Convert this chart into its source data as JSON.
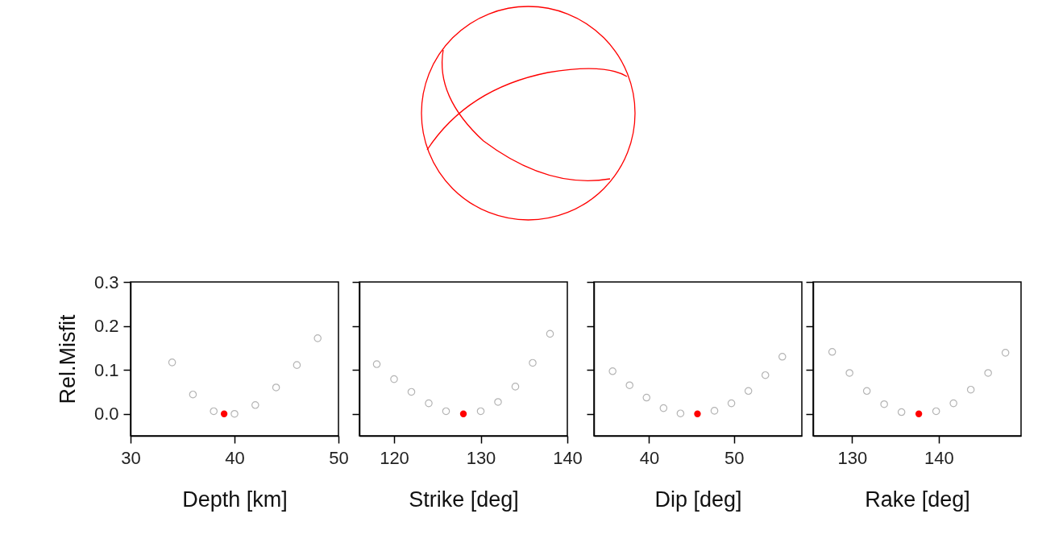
{
  "chart_data": [
    {
      "type": "scatter",
      "xlabel": "Depth [km]",
      "ylabel": "Rel.Misfit",
      "xlim": [
        30,
        50
      ],
      "xticks": [
        30,
        40,
        50
      ],
      "ylim": [
        -0.05,
        0.3
      ],
      "yticks": [
        {
          "value": 0,
          "label": "0.0"
        },
        {
          "value": 0.1,
          "label": "0.1"
        },
        {
          "value": 0.2,
          "label": "0.2"
        },
        {
          "value": 0.3,
          "label": "0.3"
        }
      ],
      "marker": "circle",
      "series": [
        {
          "color": "#b4b4b4",
          "x": [
            34,
            36,
            38,
            40,
            42,
            44,
            46,
            48
          ],
          "values": [
            0.117,
            0.044,
            0.006,
            0,
            0.02,
            0.06,
            0.111,
            0.172
          ]
        },
        {
          "color": "#ff0000",
          "x": [
            39
          ],
          "values": [
            0
          ]
        }
      ]
    },
    {
      "type": "scatter",
      "xlabel": "Strike [deg]",
      "xlim": [
        116,
        140
      ],
      "xticks": [
        120,
        130,
        140
      ],
      "ylim": [
        -0.05,
        0.3
      ],
      "yticks": [
        0,
        0.1,
        0.2,
        0.3
      ],
      "tick_labels": "x",
      "marker": "circle",
      "series": [
        {
          "color": "#b4b4b4",
          "x": [
            118,
            120,
            122,
            124,
            126,
            130,
            132,
            134,
            136,
            138
          ],
          "values": [
            0.113,
            0.079,
            0.05,
            0.024,
            0.006,
            0.006,
            0.027,
            0.062,
            0.116,
            0.182
          ]
        },
        {
          "color": "#ff0000",
          "x": [
            128
          ],
          "values": [
            0
          ]
        }
      ]
    },
    {
      "type": "scatter",
      "xlabel": "Dip [deg]",
      "xlim": [
        33.5,
        58
      ],
      "xticks": [
        40,
        50
      ],
      "ylim": [
        -0.05,
        0.3
      ],
      "yticks": [
        0,
        0.1,
        0.2,
        0.3
      ],
      "tick_labels": "x",
      "marker": "circle",
      "series": [
        {
          "color": "#b4b4b4",
          "x": [
            35.7,
            37.7,
            39.7,
            41.7,
            43.7,
            47.7,
            49.7,
            51.7,
            53.7,
            55.7
          ],
          "values": [
            0.097,
            0.065,
            0.037,
            0.013,
            0.001,
            0.007,
            0.024,
            0.052,
            0.088,
            0.13
          ]
        },
        {
          "color": "#ff0000",
          "x": [
            45.7
          ],
          "values": [
            0
          ]
        }
      ]
    },
    {
      "type": "scatter",
      "xlabel": "Rake [deg]",
      "xlim": [
        125.5,
        149.5
      ],
      "xticks": [
        130,
        140
      ],
      "ylim": [
        -0.05,
        0.3
      ],
      "yticks": [
        0,
        0.1,
        0.2,
        0.3
      ],
      "tick_labels": "x",
      "marker": "circle",
      "series": [
        {
          "color": "#b4b4b4",
          "x": [
            127.7,
            129.7,
            131.7,
            133.7,
            135.7,
            139.7,
            141.7,
            143.7,
            145.7,
            147.7
          ],
          "values": [
            0.141,
            0.093,
            0.052,
            0.022,
            0.004,
            0.006,
            0.024,
            0.055,
            0.093,
            0.139
          ]
        },
        {
          "color": "#ff0000",
          "x": [
            137.7
          ],
          "values": [
            0
          ]
        }
      ]
    }
  ]
}
